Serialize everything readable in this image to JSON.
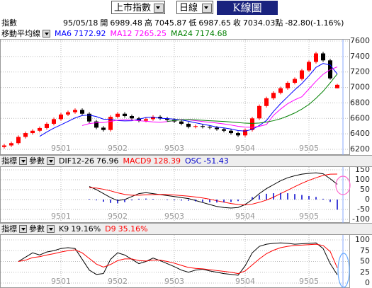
{
  "toolbar": {
    "market": "上市指數",
    "period": "日線",
    "title": "K線圖"
  },
  "info": {
    "label": "指數",
    "date": "95/05/18",
    "open_label": "開",
    "high_label": "高",
    "low_label": "低",
    "close_label": "收",
    "unit": "點",
    "change": "-82.80",
    "change_pct": "(-1.16%)"
  },
  "chart_data": [
    {
      "type": "candlestick",
      "indicator": "移動平均線",
      "categories": [
        null,
        null,
        null,
        null,
        null,
        null,
        null,
        null,
        "9501",
        null,
        null,
        null,
        null,
        null,
        null,
        null,
        "9502",
        null,
        null,
        null,
        null,
        null,
        null,
        null,
        "9503",
        null,
        null,
        null,
        null,
        null,
        null,
        null,
        null,
        null,
        "9504",
        null,
        null,
        null,
        null,
        null,
        null,
        null,
        null,
        "9505",
        null,
        null,
        null,
        null
      ],
      "open": [
        6230,
        6250,
        6280,
        6360,
        6410,
        6440,
        6475,
        6530,
        6590,
        6650,
        6680,
        6710,
        6660,
        6560,
        6480,
        6450,
        6620,
        6660,
        6630,
        6600,
        6570,
        6590,
        6620,
        6600,
        6580,
        6560,
        6530,
        6490,
        6500,
        6490,
        6480,
        6460,
        6440,
        6410,
        6380,
        6450,
        6600,
        6760,
        6860,
        6930,
        6990,
        7060,
        7110,
        7220,
        7330,
        7440,
        7350,
        6989.48
      ],
      "high": [
        6270,
        6300,
        6380,
        6430,
        6460,
        6495,
        6550,
        6610,
        6670,
        6700,
        6730,
        6730,
        6680,
        6580,
        6500,
        6640,
        6680,
        6680,
        6650,
        6620,
        6610,
        6640,
        6640,
        6620,
        6600,
        6580,
        6550,
        6520,
        6520,
        6510,
        6500,
        6480,
        6460,
        6430,
        6470,
        6620,
        6780,
        6880,
        6950,
        7010,
        7080,
        7130,
        7240,
        7350,
        7460,
        7460,
        7370,
        7045.87
      ],
      "low": [
        6210,
        6230,
        6260,
        6340,
        6390,
        6420,
        6455,
        6510,
        6570,
        6630,
        6660,
        6640,
        6540,
        6460,
        6430,
        6430,
        6600,
        6610,
        6580,
        6550,
        6550,
        6570,
        6580,
        6560,
        6540,
        6510,
        6470,
        6470,
        6470,
        6460,
        6440,
        6420,
        6390,
        6360,
        6360,
        6430,
        6580,
        6740,
        6840,
        6910,
        6970,
        7040,
        7090,
        7200,
        7310,
        7330,
        7100,
        6987.65
      ],
      "close": [
        6250,
        6280,
        6360,
        6410,
        6440,
        6475,
        6530,
        6590,
        6650,
        6680,
        6710,
        6660,
        6560,
        6480,
        6450,
        6620,
        6660,
        6630,
        6600,
        6570,
        6590,
        6620,
        6600,
        6580,
        6560,
        6530,
        6490,
        6500,
        6490,
        6480,
        6460,
        6440,
        6410,
        6380,
        6450,
        6600,
        6760,
        6860,
        6930,
        6990,
        7060,
        7110,
        7220,
        7330,
        7440,
        7350,
        7116.83,
        7034.03
      ],
      "up_color": "#ff0000",
      "down_color": "#000000",
      "series": [
        {
          "name": "MA6",
          "color": "#0000ff",
          "values": [
            null,
            null,
            null,
            null,
            null,
            6368,
            6424,
            6474,
            6516,
            6561,
            6606,
            6637,
            6643,
            6623,
            6590,
            6585,
            6572,
            6567,
            6570,
            6588,
            6612,
            6615,
            6602,
            6597,
            6590,
            6580,
            6563,
            6543,
            6525,
            6508,
            6487,
            6477,
            6463,
            6443,
            6436,
            6457,
            6508,
            6572,
            6690,
            6790,
            6880,
            6970,
            7050,
            7150,
            7260,
            7310,
            7290,
            7172.92
          ]
        },
        {
          "name": "MA12",
          "color": "#ff00ff",
          "values": [
            null,
            null,
            null,
            null,
            null,
            null,
            null,
            null,
            null,
            null,
            null,
            6507,
            6533,
            6543,
            6546,
            6561,
            6576,
            6581,
            6578,
            6570,
            6563,
            6555,
            6550,
            6558,
            6570,
            6586,
            6582,
            6571,
            6559,
            6550,
            6540,
            6528,
            6514,
            6497,
            6487,
            6485,
            6497,
            6520,
            6640,
            6720,
            6790,
            6840,
            6880,
            6980,
            7080,
            7170,
            7230,
            7265.25
          ]
        },
        {
          "name": "MA24",
          "color": "#008000",
          "values": [
            null,
            null,
            null,
            null,
            null,
            null,
            null,
            null,
            null,
            null,
            null,
            null,
            null,
            null,
            null,
            null,
            null,
            null,
            null,
            null,
            null,
            null,
            null,
            6560,
            6572,
            6582,
            6586,
            6581,
            6575,
            6570,
            6565,
            6560,
            6553,
            6545,
            6538,
            6535,
            6540,
            6552,
            6570,
            6595,
            6630,
            6670,
            6720,
            6780,
            6860,
            6950,
            7060,
            7174.68
          ]
        }
      ],
      "ylim": [
        6200,
        7600
      ],
      "yticks": [
        7600,
        7400,
        7200,
        7000,
        6800,
        6600,
        6400,
        6200
      ],
      "grid": true
    },
    {
      "type": "line",
      "indicator_label": "指標",
      "param_label": "參數",
      "series": [
        {
          "name": "DIF12-26",
          "color": "#000000",
          "values": [
            null,
            null,
            null,
            null,
            null,
            null,
            null,
            null,
            null,
            null,
            null,
            null,
            66,
            50,
            30,
            10,
            -5,
            0,
            15,
            30,
            35,
            30,
            25,
            20,
            15,
            10,
            5,
            -5,
            -15,
            -25,
            -35,
            -40,
            -43,
            -40,
            -25,
            0,
            30,
            55,
            75,
            95,
            110,
            120,
            128,
            132,
            135,
            130,
            105,
            76.96
          ]
        },
        {
          "name": "MACD9",
          "color": "#ff0000",
          "values": [
            null,
            null,
            null,
            null,
            null,
            null,
            null,
            null,
            null,
            null,
            null,
            null,
            60,
            58,
            52,
            44,
            34,
            26,
            22,
            22,
            24,
            25,
            26,
            25,
            23,
            20,
            17,
            13,
            8,
            2,
            -6,
            -13,
            -20,
            -25,
            -27,
            -23,
            -14,
            -3,
            12,
            30,
            47,
            65,
            82,
            97,
            110,
            122,
            128,
            128.39
          ]
        },
        {
          "name": "OSC",
          "color": "#0000cc",
          "style": "bar",
          "values": [
            null,
            null,
            null,
            null,
            null,
            null,
            null,
            null,
            null,
            null,
            null,
            null,
            3,
            -4,
            -11,
            -17,
            -19,
            -13,
            -4,
            4,
            5,
            3,
            0,
            -3,
            -4,
            -5,
            -6,
            -9,
            -12,
            -14,
            -15,
            -14,
            -12,
            -8,
            1,
            12,
            22,
            29,
            32,
            33,
            32,
            28,
            23,
            18,
            13,
            4,
            -12,
            -51.43
          ]
        }
      ],
      "ylim": [
        -100,
        150
      ],
      "yticks": [
        150,
        100,
        50,
        0,
        -50,
        -100
      ],
      "grid": true
    },
    {
      "type": "line",
      "indicator_label": "指標",
      "param_label": "參數",
      "series": [
        {
          "name": "K9",
          "color": "#000000",
          "values": [
            null,
            null,
            50,
            60,
            70,
            65,
            72,
            75,
            80,
            82,
            80,
            55,
            30,
            20,
            22,
            55,
            70,
            65,
            55,
            45,
            50,
            58,
            52,
            45,
            38,
            30,
            25,
            30,
            32,
            28,
            25,
            22,
            20,
            18,
            40,
            70,
            85,
            90,
            92,
            93,
            92,
            90,
            91,
            92,
            93,
            80,
            45,
            19.16
          ],
          "value_labels": [
            null,
            null,
            null,
            null,
            null,
            null,
            null,
            null,
            null,
            null,
            null,
            null,
            null,
            null,
            null,
            null,
            null,
            null,
            null,
            null,
            null,
            null,
            null,
            null,
            null,
            null,
            null,
            null,
            null,
            null,
            null,
            null,
            null,
            null,
            null,
            null,
            null,
            null,
            null,
            null,
            null,
            null,
            null,
            null,
            null,
            null,
            null,
            "19.16%"
          ]
        },
        {
          "name": "D9",
          "color": "#ff0000",
          "values": [
            null,
            null,
            50,
            53,
            59,
            61,
            65,
            68,
            72,
            75,
            77,
            70,
            57,
            44,
            37,
            43,
            52,
            56,
            56,
            52,
            51,
            53,
            53,
            50,
            46,
            41,
            36,
            34,
            33,
            31,
            29,
            27,
            25,
            22,
            28,
            42,
            56,
            68,
            76,
            82,
            85,
            87,
            88,
            89,
            90,
            87,
            73,
            35.16
          ],
          "value_labels": [
            null,
            null,
            null,
            null,
            null,
            null,
            null,
            null,
            null,
            null,
            null,
            null,
            null,
            null,
            null,
            null,
            null,
            null,
            null,
            null,
            null,
            null,
            null,
            null,
            null,
            null,
            null,
            null,
            null,
            null,
            null,
            null,
            null,
            null,
            null,
            null,
            null,
            null,
            null,
            null,
            null,
            null,
            null,
            null,
            null,
            null,
            null,
            "35.16%"
          ]
        }
      ],
      "ylim": [
        0,
        100
      ],
      "yticks": [
        100,
        75,
        50,
        25,
        0
      ],
      "grid": true
    }
  ]
}
